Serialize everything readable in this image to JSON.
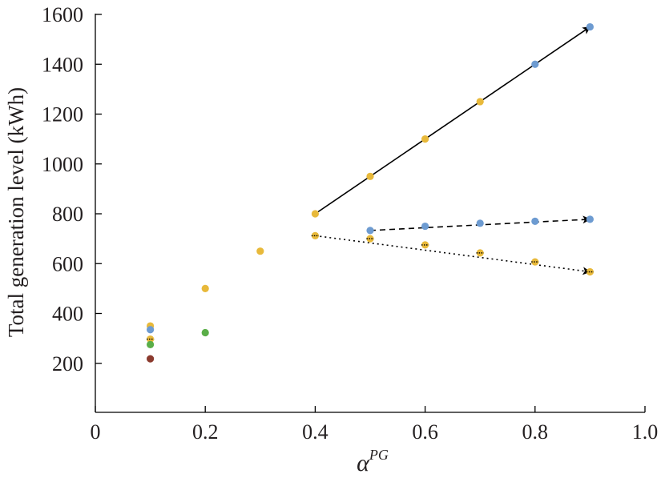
{
  "chart_data": {
    "type": "scatter",
    "xlabel": "α",
    "xlabel_superscript": "PG",
    "ylabel": "Total generation level (kWh)",
    "xlim": [
      0,
      1.0
    ],
    "ylim": [
      0,
      1600
    ],
    "x_ticks": [
      0,
      0.2,
      0.4,
      0.6,
      0.8,
      1.0
    ],
    "x_tick_labels": [
      "0",
      "0.2",
      "0.4",
      "0.6",
      "0.8",
      "1.0"
    ],
    "y_ticks": [
      200,
      400,
      600,
      800,
      1000,
      1200,
      1400,
      1600
    ],
    "y_tick_labels": [
      "200",
      "400",
      "600",
      "800",
      "1000",
      "1200",
      "1400",
      "1600"
    ],
    "grid": false,
    "colors": {
      "yellow": "#e8b93a",
      "blue": "#6d9bd1",
      "green": "#5aae48",
      "red": "#8b3a2e",
      "black": "#000000"
    },
    "points": [
      {
        "x": 0.1,
        "y": 350,
        "color": "yellow"
      },
      {
        "x": 0.1,
        "y": 335,
        "color": "blue"
      },
      {
        "x": 0.1,
        "y": 297,
        "color": "yellow",
        "marker": "dot-hatched"
      },
      {
        "x": 0.1,
        "y": 275,
        "color": "green"
      },
      {
        "x": 0.1,
        "y": 218,
        "color": "red"
      },
      {
        "x": 0.2,
        "y": 500,
        "color": "yellow"
      },
      {
        "x": 0.2,
        "y": 323,
        "color": "green"
      },
      {
        "x": 0.3,
        "y": 650,
        "color": "yellow"
      },
      {
        "x": 0.4,
        "y": 800,
        "color": "yellow"
      },
      {
        "x": 0.5,
        "y": 950,
        "color": "yellow"
      },
      {
        "x": 0.6,
        "y": 1100,
        "color": "yellow"
      },
      {
        "x": 0.7,
        "y": 1250,
        "color": "yellow"
      },
      {
        "x": 0.8,
        "y": 1400,
        "color": "blue"
      },
      {
        "x": 0.9,
        "y": 1550,
        "color": "blue"
      },
      {
        "x": 0.5,
        "y": 733,
        "color": "blue"
      },
      {
        "x": 0.6,
        "y": 750,
        "color": "blue"
      },
      {
        "x": 0.7,
        "y": 762,
        "color": "blue"
      },
      {
        "x": 0.8,
        "y": 770,
        "color": "blue"
      },
      {
        "x": 0.9,
        "y": 778,
        "color": "blue"
      },
      {
        "x": 0.4,
        "y": 712,
        "color": "yellow",
        "marker": "dot-hatched"
      },
      {
        "x": 0.5,
        "y": 700,
        "color": "yellow",
        "marker": "dot-hatched"
      },
      {
        "x": 0.6,
        "y": 675,
        "color": "yellow",
        "marker": "dot-hatched"
      },
      {
        "x": 0.7,
        "y": 643,
        "color": "yellow",
        "marker": "dot-hatched"
      },
      {
        "x": 0.8,
        "y": 607,
        "color": "yellow",
        "marker": "dot-hatched"
      },
      {
        "x": 0.9,
        "y": 567,
        "color": "yellow",
        "marker": "dot-hatched"
      }
    ],
    "arrows": [
      {
        "style": "solid",
        "from": [
          0.4,
          800
        ],
        "to": [
          0.9,
          1550
        ]
      },
      {
        "style": "dashed",
        "from": [
          0.5,
          733
        ],
        "to": [
          0.9,
          778
        ]
      },
      {
        "style": "dotted",
        "from": [
          0.4,
          712
        ],
        "to": [
          0.9,
          567
        ]
      }
    ]
  }
}
